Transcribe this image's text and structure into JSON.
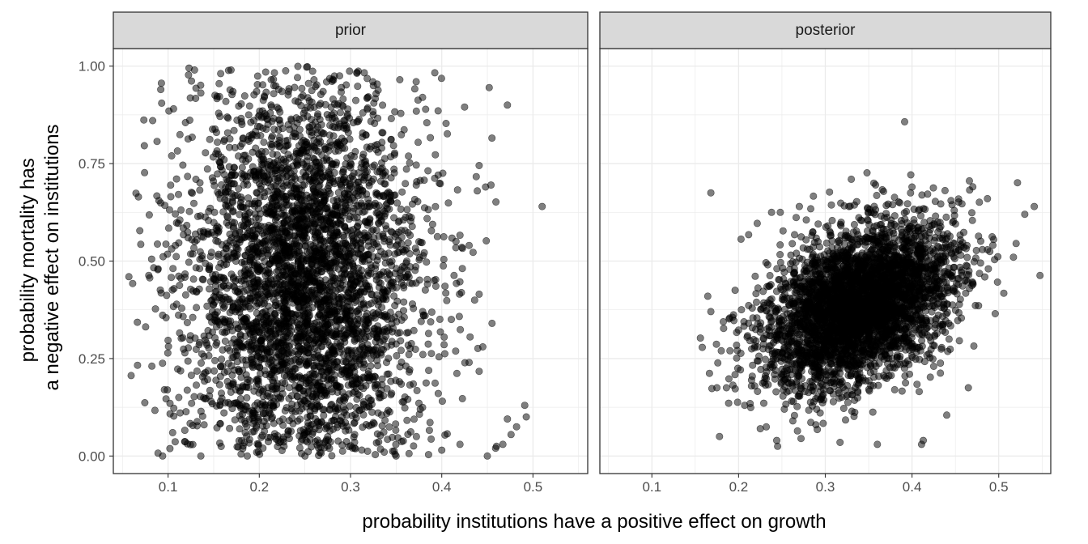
{
  "chart_data": {
    "type": "scatter",
    "xlabel": "probability institutions have a positive effect on growth",
    "ylabel": [
      "probability mortality has",
      "a negative effect on institutions"
    ],
    "xlim": [
      0.04,
      0.56
    ],
    "ylim": [
      -0.045,
      1.045
    ],
    "x_ticks": [
      0.1,
      0.2,
      0.3,
      0.4,
      0.5
    ],
    "x_tick_labels": [
      "0.1",
      "0.2",
      "0.3",
      "0.4",
      "0.5"
    ],
    "y_ticks": [
      0.0,
      0.25,
      0.5,
      0.75,
      1.0
    ],
    "y_tick_labels": [
      "0.00",
      "0.25",
      "0.50",
      "0.75",
      "1.00"
    ],
    "grid": true,
    "point_color": "#000000",
    "point_opacity": 0.5,
    "strip_fill": "#d9d9d9",
    "panels": [
      {
        "label": "prior",
        "center": [
          0.25,
          0.45
        ],
        "spread": [
          0.065,
          0.26
        ],
        "correlation": 0.0,
        "n": 4000,
        "points": [
          [
            0.057,
            0.46
          ],
          [
            0.082,
            0.505
          ],
          [
            0.09,
            0.655
          ],
          [
            0.092,
            0.94
          ],
          [
            0.093,
            0.905
          ],
          [
            0.101,
            0.885
          ],
          [
            0.104,
            0.77
          ],
          [
            0.103,
            0.665
          ],
          [
            0.108,
            0.54
          ],
          [
            0.096,
            0.17
          ],
          [
            0.094,
            0.0
          ],
          [
            0.123,
            0.995
          ],
          [
            0.129,
            0.99
          ],
          [
            0.156,
            0.955
          ],
          [
            0.169,
            0.99
          ],
          [
            0.213,
            0.965
          ],
          [
            0.232,
            0.935
          ],
          [
            0.26,
            0.965
          ],
          [
            0.288,
            0.975
          ],
          [
            0.325,
            0.95
          ],
          [
            0.354,
            0.965
          ],
          [
            0.372,
            0.96
          ],
          [
            0.452,
            0.945
          ],
          [
            0.472,
            0.9
          ],
          [
            0.425,
            0.895
          ],
          [
            0.448,
            0.69
          ],
          [
            0.454,
            0.695
          ],
          [
            0.441,
            0.745
          ],
          [
            0.439,
            0.68
          ],
          [
            0.51,
            0.64
          ],
          [
            0.43,
            0.54
          ],
          [
            0.422,
            0.535
          ],
          [
            0.441,
            0.415
          ],
          [
            0.436,
            0.4
          ],
          [
            0.445,
            0.28
          ],
          [
            0.43,
            0.24
          ],
          [
            0.491,
            0.13
          ],
          [
            0.482,
            0.075
          ],
          [
            0.472,
            0.095
          ],
          [
            0.476,
            0.055
          ],
          [
            0.467,
            0.03
          ],
          [
            0.46,
            0.025
          ],
          [
            0.459,
            0.02
          ],
          [
            0.45,
            0.0
          ],
          [
            0.42,
            0.03
          ],
          [
            0.4,
            0.015
          ],
          [
            0.35,
            0.0
          ],
          [
            0.25,
            0.0
          ],
          [
            0.18,
            0.005
          ],
          [
            0.105,
            0.06
          ]
        ]
      },
      {
        "label": "posterior",
        "center": [
          0.34,
          0.39
        ],
        "spread": [
          0.055,
          0.105
        ],
        "correlation": 0.38,
        "n": 4000,
        "points": [
          [
            0.168,
            0.675
          ],
          [
            0.175,
            0.175
          ],
          [
            0.178,
            0.05
          ],
          [
            0.18,
            0.27
          ],
          [
            0.186,
            0.175
          ],
          [
            0.19,
            0.27
          ],
          [
            0.196,
            0.425
          ],
          [
            0.238,
            0.625
          ],
          [
            0.27,
            0.64
          ],
          [
            0.33,
            0.71
          ],
          [
            0.356,
            0.7
          ],
          [
            0.4,
            0.69
          ],
          [
            0.445,
            0.655
          ],
          [
            0.487,
            0.66
          ],
          [
            0.53,
            0.62
          ],
          [
            0.541,
            0.64
          ],
          [
            0.52,
            0.545
          ],
          [
            0.517,
            0.51
          ],
          [
            0.496,
            0.365
          ],
          [
            0.488,
            0.48
          ],
          [
            0.44,
            0.105
          ],
          [
            0.413,
            0.04
          ],
          [
            0.411,
            0.03
          ],
          [
            0.36,
            0.03
          ],
          [
            0.317,
            0.035
          ],
          [
            0.272,
            0.045
          ],
          [
            0.245,
            0.025
          ],
          [
            0.244,
            0.04
          ],
          [
            0.225,
            0.07
          ],
          [
            0.207,
            0.13
          ],
          [
            0.465,
            0.175
          ],
          [
            0.425,
            0.23
          ],
          [
            0.38,
            0.17
          ],
          [
            0.29,
            0.12
          ],
          [
            0.24,
            0.25
          ]
        ]
      }
    ]
  }
}
